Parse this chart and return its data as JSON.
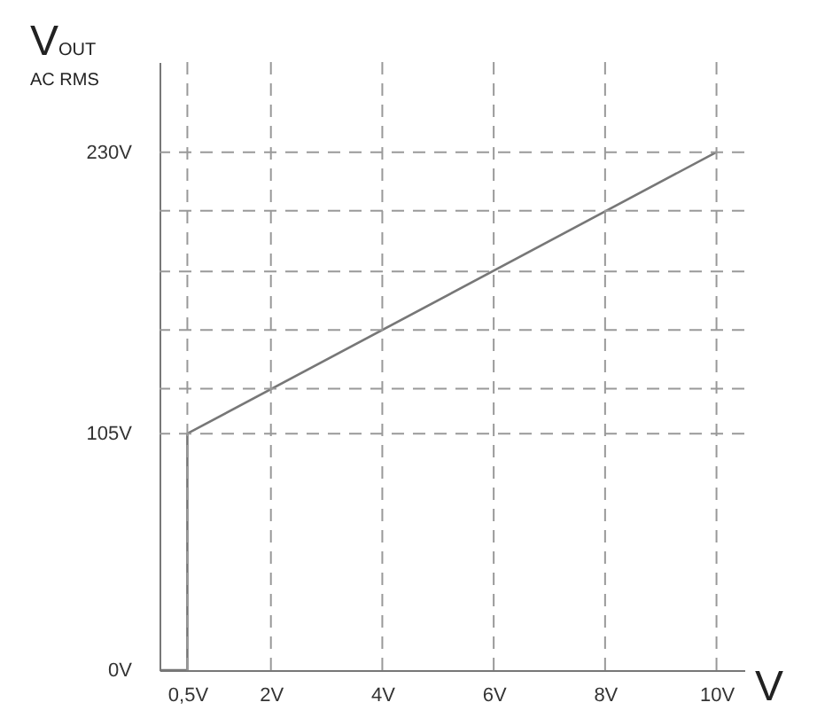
{
  "chart_data": {
    "type": "line",
    "xlabel": "V",
    "ylabel": "V$_{OUT}$ AC RMS",
    "series": [
      {
        "color": "#777777",
        "x": [
          0,
          0.5,
          0.5,
          10
        ],
        "values": [
          0,
          0,
          105,
          230
        ]
      }
    ],
    "xlim": [
      0,
      10.5
    ],
    "xticks": [
      {
        "value": 0.5,
        "label": "0,5V"
      },
      {
        "value": 2,
        "label": "2V"
      },
      {
        "value": 4,
        "label": "4V"
      },
      {
        "value": 6,
        "label": "6V"
      },
      {
        "value": 8,
        "label": "8V"
      },
      {
        "value": 10,
        "label": "10V"
      }
    ],
    "ylim": [
      0,
      270
    ],
    "yticks": [
      {
        "value": 0,
        "label": "0V"
      },
      {
        "value": 105,
        "label": "105V"
      },
      {
        "value": 230,
        "label": "230V"
      }
    ],
    "grid": false,
    "marker": "none",
    "line_style": "solid",
    "ref_lines": [
      {
        "axis": "x",
        "value": 0.5,
        "color": "#999999",
        "line_style": "dashed"
      },
      {
        "axis": "x",
        "value": 2,
        "color": "#999999",
        "line_style": "dashed"
      },
      {
        "axis": "x",
        "value": 4,
        "color": "#999999",
        "line_style": "dashed"
      },
      {
        "axis": "x",
        "value": 6,
        "color": "#999999",
        "line_style": "dashed"
      },
      {
        "axis": "x",
        "value": 8,
        "color": "#999999",
        "line_style": "dashed"
      },
      {
        "axis": "x",
        "value": 10,
        "color": "#999999",
        "line_style": "dashed"
      },
      {
        "axis": "y",
        "value": 105,
        "color": "#999999",
        "line_style": "dashed"
      },
      {
        "axis": "y",
        "value": 125,
        "color": "#999999",
        "line_style": "dashed"
      },
      {
        "axis": "y",
        "value": 151,
        "color": "#999999",
        "line_style": "dashed"
      },
      {
        "axis": "y",
        "value": 177,
        "color": "#999999",
        "line_style": "dashed"
      },
      {
        "axis": "y",
        "value": 204,
        "color": "#999999",
        "line_style": "dashed"
      },
      {
        "axis": "y",
        "value": 230,
        "color": "#999999",
        "line_style": "dashed"
      }
    ]
  }
}
